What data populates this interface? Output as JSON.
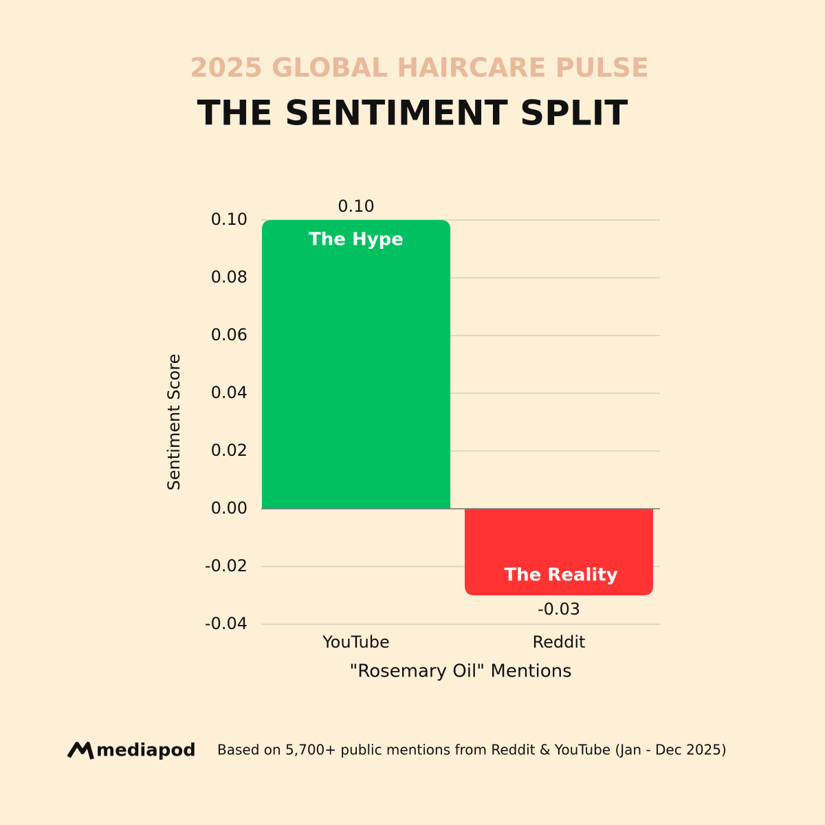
{
  "chart_data": {
    "type": "bar",
    "subtitle": "2025 GLOBAL HAIRCARE PULSE",
    "title": "THE SENTIMENT SPLIT",
    "categories": [
      "YouTube",
      "Reddit"
    ],
    "values": [
      0.1,
      -0.03
    ],
    "value_labels": [
      "0.10",
      "-0.03"
    ],
    "bar_labels": [
      "The Hype",
      "The Reality"
    ],
    "colors": [
      "#00c060",
      "#ff3333"
    ],
    "ylim": [
      -0.04,
      0.1
    ],
    "yticks": [
      {
        "value": 0.1,
        "label": "0.10"
      },
      {
        "value": 0.08,
        "label": "0.08"
      },
      {
        "value": 0.06,
        "label": "0.06"
      },
      {
        "value": 0.04,
        "label": "0.04"
      },
      {
        "value": 0.02,
        "label": "0.02"
      },
      {
        "value": 0,
        "label": "0.00"
      },
      {
        "value": -0.02,
        "label": "-0.02"
      },
      {
        "value": -0.04,
        "label": "-0.04"
      }
    ],
    "ylabel": "Sentiment Score",
    "xlabel": "\"Rosemary Oil\" Mentions",
    "grid": true
  },
  "footer": {
    "brand": "mediapod",
    "note": "Based on 5,700+ public mentions from Reddit & YouTube (Jan - Dec 2025)"
  }
}
